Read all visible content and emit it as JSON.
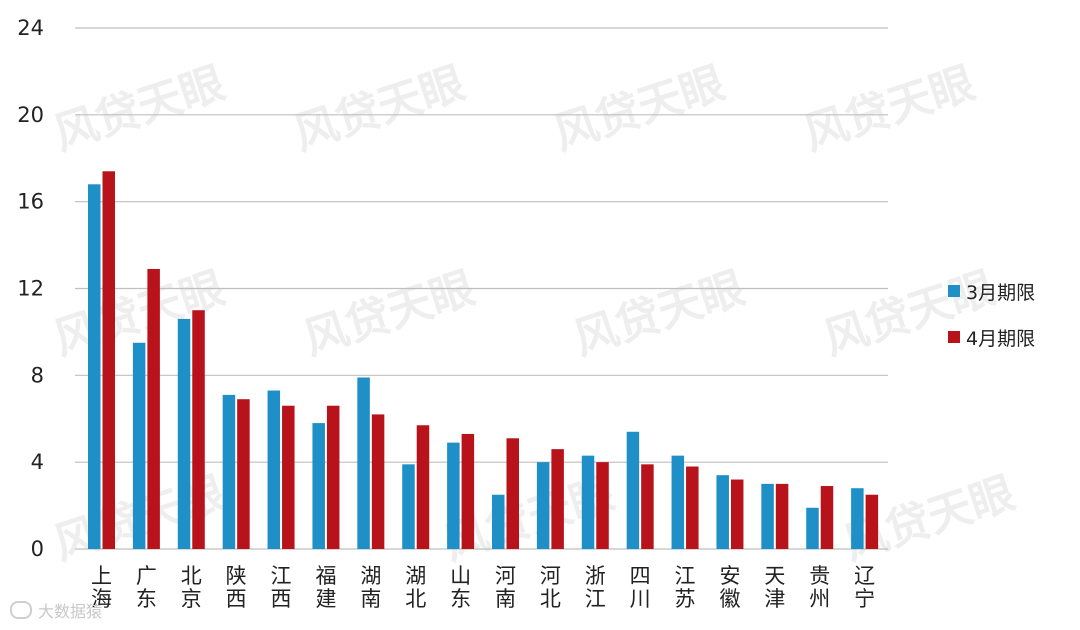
{
  "chart_data": {
    "type": "bar",
    "categories": [
      "上海",
      "广东",
      "北京",
      "陕西",
      "江西",
      "福建",
      "湖南",
      "湖北",
      "山东",
      "河南",
      "河北",
      "浙江",
      "四川",
      "江苏",
      "安徽",
      "天津",
      "贵州",
      "辽宁"
    ],
    "series": [
      {
        "name": "3月期限",
        "color": "#1f8fc8",
        "values": [
          16.8,
          9.5,
          10.6,
          7.1,
          7.3,
          5.8,
          7.9,
          3.9,
          4.9,
          2.5,
          4.0,
          4.3,
          5.4,
          4.3,
          3.4,
          3.0,
          1.9,
          2.8
        ]
      },
      {
        "name": "4月期限",
        "color": "#b8121b",
        "values": [
          17.4,
          12.9,
          11.0,
          6.9,
          6.6,
          6.6,
          6.2,
          5.7,
          5.3,
          5.1,
          4.6,
          4.0,
          3.9,
          3.8,
          3.2,
          3.0,
          2.9,
          2.5
        ]
      }
    ],
    "yticks": [
      "0",
      "4",
      "8",
      "12",
      "16",
      "20",
      "24"
    ],
    "ylim": [
      0,
      24
    ],
    "grid": true,
    "legend": "right",
    "title": "",
    "xlabel": "",
    "ylabel": ""
  },
  "footer": {
    "logo_text": "大数据猿"
  }
}
